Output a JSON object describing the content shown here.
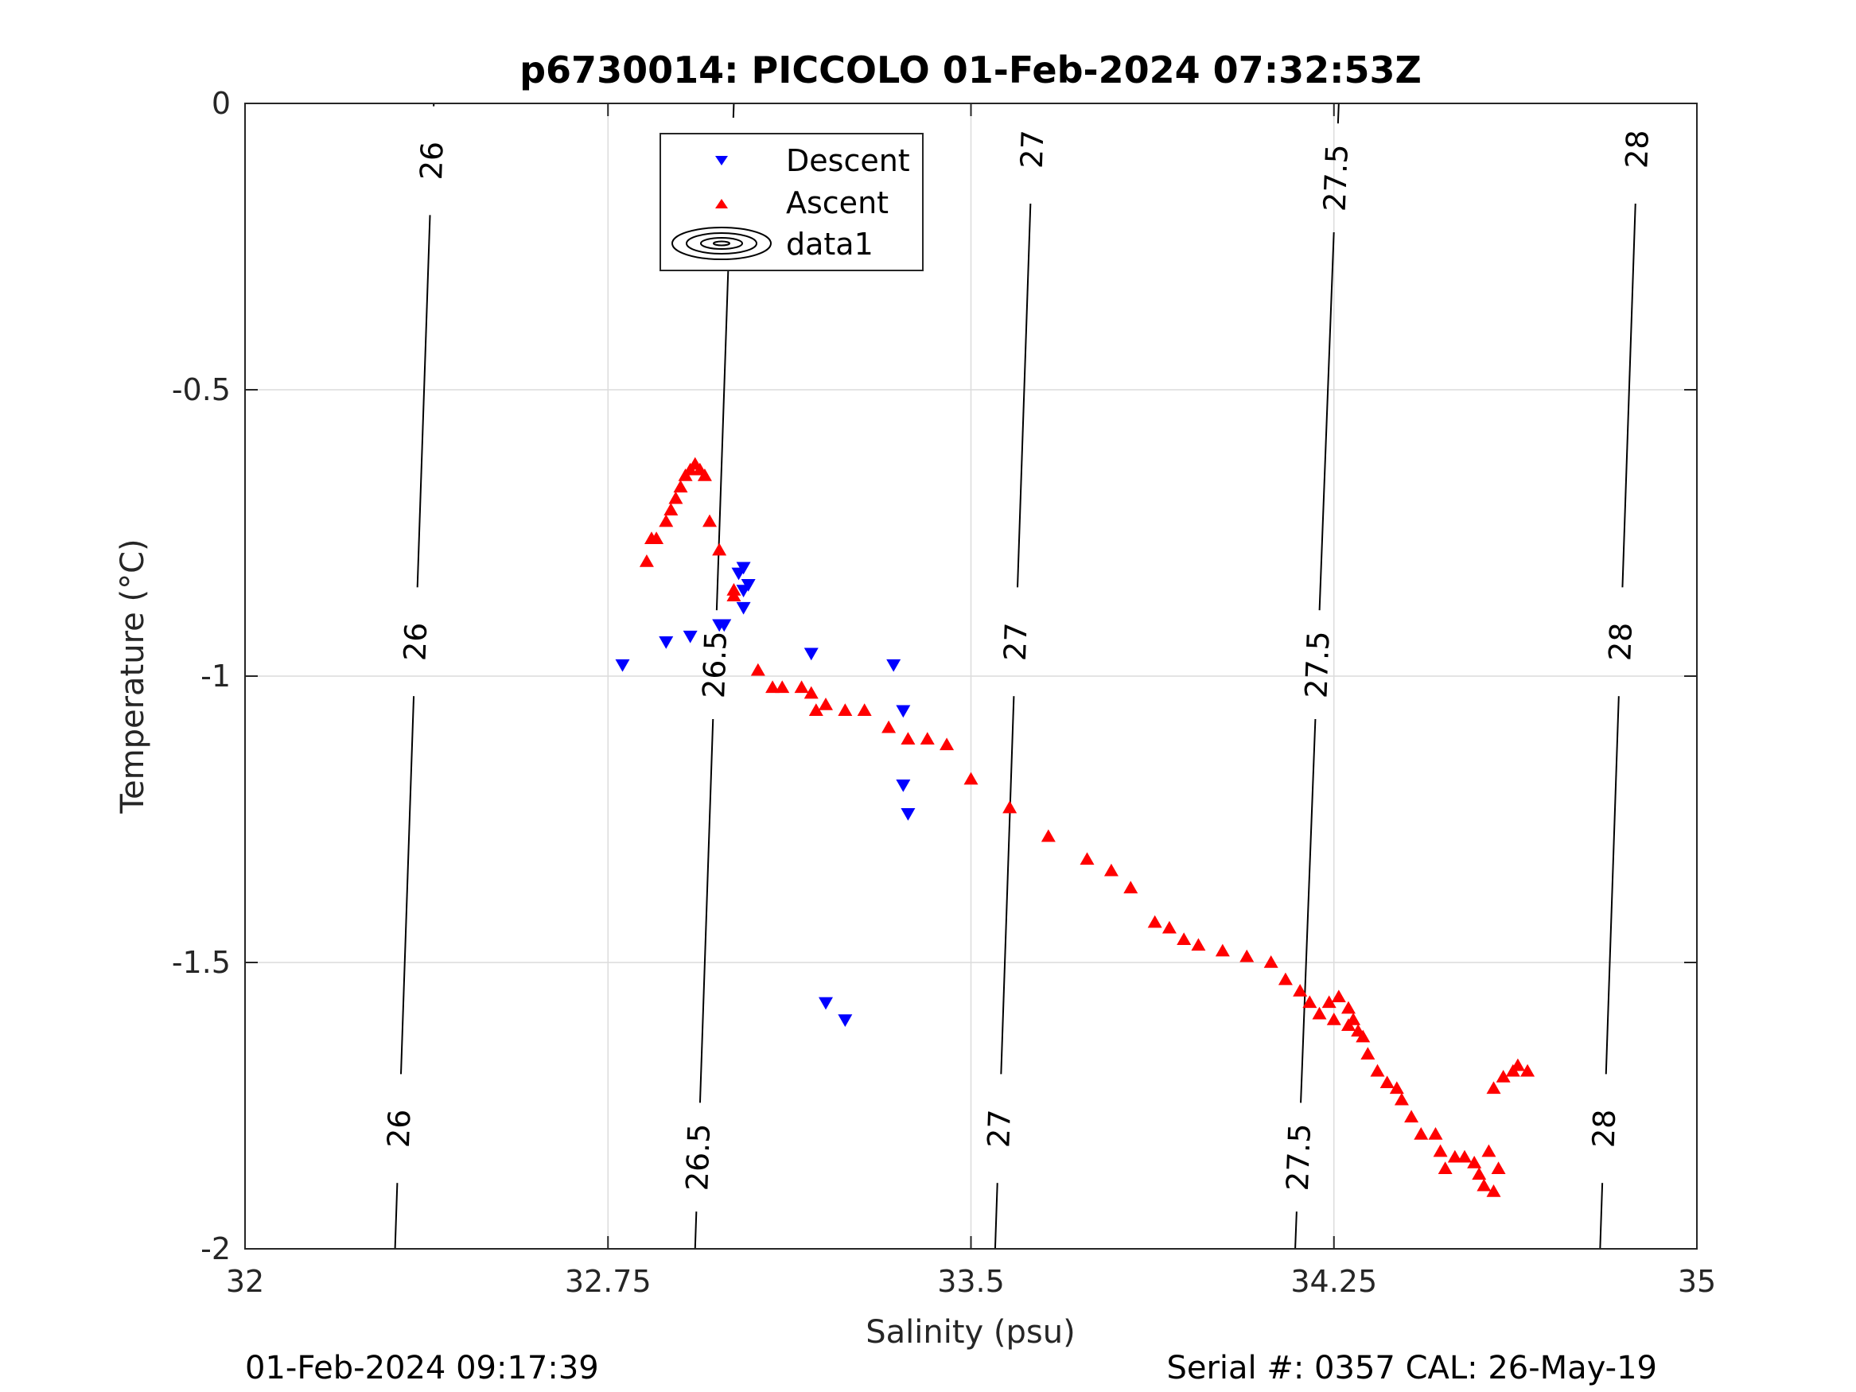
{
  "chart_data": {
    "type": "scatter",
    "title": "p6730014: PICCOLO 01-Feb-2024 07:32:53Z",
    "xlabel": "Salinity (psu)",
    "ylabel": "Temperature (°C)",
    "xlim": [
      32,
      35
    ],
    "ylim": [
      -2,
      0
    ],
    "grid": true,
    "x_ticks": [
      "32",
      "32.75",
      "33.5",
      "34.25",
      "35"
    ],
    "y_ticks": [
      "0",
      "-0.5",
      "-1",
      "-1.5",
      "-2"
    ],
    "legend": {
      "placement": "top-center",
      "entries": [
        "Descent",
        "Ascent",
        "data1"
      ]
    },
    "footer_left": "01-Feb-2024 09:17:39",
    "footer_right": "Serial #: 0357  CAL: 26-May-19",
    "contours": [
      {
        "level": "26",
        "top_s": 32.39,
        "bottom_s": 32.31,
        "labels_t": [
          -0.1,
          -0.94,
          -1.79
        ]
      },
      {
        "level": "26.5",
        "top_s": 33.01,
        "bottom_s": 32.93,
        "labels_t": [
          -0.12,
          -0.98,
          -1.84
        ]
      },
      {
        "level": "27",
        "top_s": 33.63,
        "bottom_s": 33.55,
        "labels_t": [
          -0.08,
          -0.94,
          -1.79
        ]
      },
      {
        "level": "27.5",
        "top_s": 34.26,
        "bottom_s": 34.17,
        "labels_t": [
          -0.13,
          -0.98,
          -1.84
        ]
      },
      {
        "level": "28",
        "top_s": 34.88,
        "bottom_s": 34.8,
        "labels_t": [
          -0.08,
          -0.94,
          -1.79
        ]
      }
    ],
    "series": [
      {
        "name": "Descent",
        "color": "#0000ff",
        "marker": "triangle-down",
        "points": [
          [
            32.78,
            -0.98
          ],
          [
            32.87,
            -0.94
          ],
          [
            32.92,
            -0.93
          ],
          [
            32.98,
            -0.91
          ],
          [
            32.99,
            -0.91
          ],
          [
            33.04,
            -0.84
          ],
          [
            33.03,
            -0.81
          ],
          [
            33.02,
            -0.82
          ],
          [
            33.03,
            -0.85
          ],
          [
            33.03,
            -0.88
          ],
          [
            33.17,
            -0.96
          ],
          [
            33.34,
            -0.98
          ],
          [
            33.36,
            -1.06
          ],
          [
            33.36,
            -1.19
          ],
          [
            33.37,
            -1.24
          ],
          [
            33.2,
            -1.57
          ],
          [
            33.24,
            -1.6
          ]
        ]
      },
      {
        "name": "Ascent",
        "color": "#ff0000",
        "marker": "triangle-up",
        "points": [
          [
            32.83,
            -0.8
          ],
          [
            32.84,
            -0.76
          ],
          [
            32.85,
            -0.76
          ],
          [
            32.87,
            -0.73
          ],
          [
            32.88,
            -0.71
          ],
          [
            32.89,
            -0.69
          ],
          [
            32.9,
            -0.67
          ],
          [
            32.91,
            -0.65
          ],
          [
            32.92,
            -0.64
          ],
          [
            32.93,
            -0.63
          ],
          [
            32.94,
            -0.64
          ],
          [
            32.95,
            -0.65
          ],
          [
            32.96,
            -0.73
          ],
          [
            32.98,
            -0.78
          ],
          [
            33.01,
            -0.86
          ],
          [
            33.01,
            -0.85
          ],
          [
            33.06,
            -0.99
          ],
          [
            33.09,
            -1.02
          ],
          [
            33.11,
            -1.02
          ],
          [
            33.15,
            -1.02
          ],
          [
            33.17,
            -1.03
          ],
          [
            33.18,
            -1.06
          ],
          [
            33.2,
            -1.05
          ],
          [
            33.24,
            -1.06
          ],
          [
            33.28,
            -1.06
          ],
          [
            33.33,
            -1.09
          ],
          [
            33.37,
            -1.11
          ],
          [
            33.41,
            -1.11
          ],
          [
            33.45,
            -1.12
          ],
          [
            33.5,
            -1.18
          ],
          [
            33.58,
            -1.23
          ],
          [
            33.66,
            -1.28
          ],
          [
            33.74,
            -1.32
          ],
          [
            33.79,
            -1.34
          ],
          [
            33.83,
            -1.37
          ],
          [
            33.88,
            -1.43
          ],
          [
            33.91,
            -1.44
          ],
          [
            33.94,
            -1.46
          ],
          [
            33.97,
            -1.47
          ],
          [
            34.02,
            -1.48
          ],
          [
            34.07,
            -1.49
          ],
          [
            34.12,
            -1.5
          ],
          [
            34.15,
            -1.53
          ],
          [
            34.18,
            -1.55
          ],
          [
            34.2,
            -1.57
          ],
          [
            34.22,
            -1.59
          ],
          [
            34.25,
            -1.6
          ],
          [
            34.28,
            -1.61
          ],
          [
            34.3,
            -1.62
          ],
          [
            34.24,
            -1.57
          ],
          [
            34.26,
            -1.56
          ],
          [
            34.28,
            -1.58
          ],
          [
            34.29,
            -1.6
          ],
          [
            34.31,
            -1.63
          ],
          [
            34.32,
            -1.66
          ],
          [
            34.34,
            -1.69
          ],
          [
            34.36,
            -1.71
          ],
          [
            34.38,
            -1.72
          ],
          [
            34.39,
            -1.74
          ],
          [
            34.41,
            -1.77
          ],
          [
            34.43,
            -1.8
          ],
          [
            34.46,
            -1.8
          ],
          [
            34.47,
            -1.83
          ],
          [
            34.48,
            -1.86
          ],
          [
            34.5,
            -1.84
          ],
          [
            34.52,
            -1.84
          ],
          [
            34.54,
            -1.85
          ],
          [
            34.55,
            -1.87
          ],
          [
            34.56,
            -1.89
          ],
          [
            34.58,
            -1.9
          ],
          [
            34.59,
            -1.86
          ],
          [
            34.57,
            -1.83
          ],
          [
            34.58,
            -1.72
          ],
          [
            34.6,
            -1.7
          ],
          [
            34.62,
            -1.69
          ],
          [
            34.63,
            -1.68
          ],
          [
            34.65,
            -1.69
          ]
        ]
      }
    ]
  }
}
